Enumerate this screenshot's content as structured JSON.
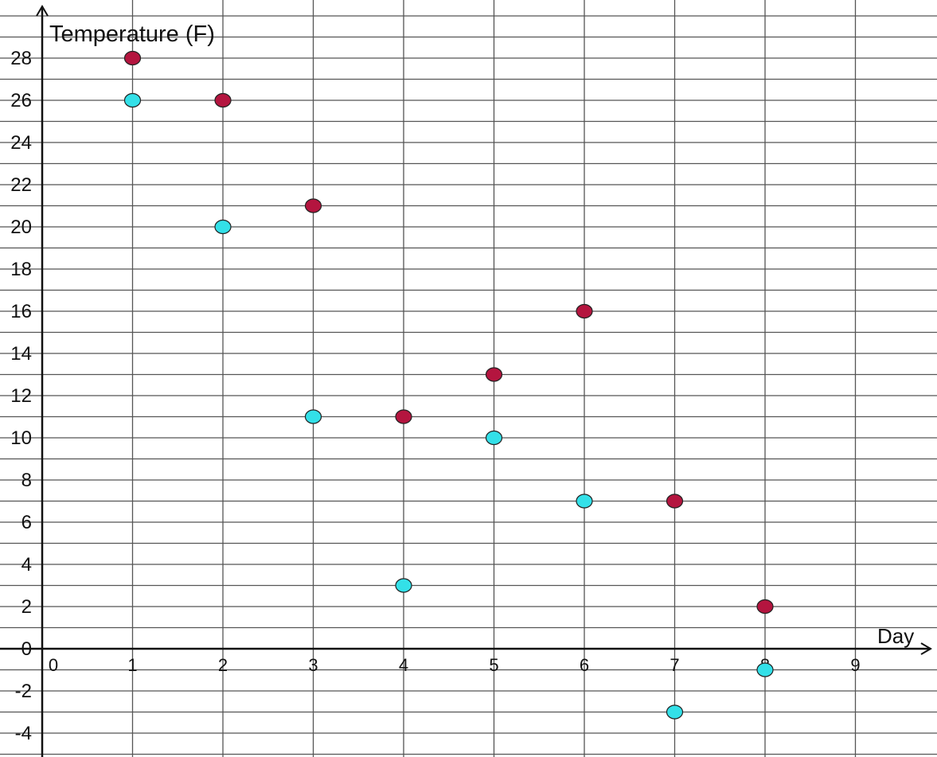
{
  "chart_data": {
    "type": "scatter",
    "title": "",
    "xlabel": "Day",
    "ylabel": "Temperature (F)",
    "xlim": [
      -0.95,
      9.5
    ],
    "ylim": [
      -5,
      30
    ],
    "x_ticks": [
      "0",
      "1",
      "2",
      "3",
      "4",
      "5",
      "6",
      "7",
      "8",
      "9"
    ],
    "y_ticks": [
      "-4",
      "-2",
      "0",
      "2",
      "4",
      "6",
      "8",
      "10",
      "12",
      "14",
      "16",
      "18",
      "20",
      "22",
      "24",
      "26",
      "28"
    ],
    "grid": true,
    "series": [
      {
        "color": "#b4153f",
        "x": [
          1,
          2,
          3,
          4,
          5,
          6,
          7,
          8
        ],
        "y": [
          28,
          26,
          21,
          11,
          13,
          16,
          7,
          2
        ]
      },
      {
        "color": "#33e0e8",
        "x": [
          1,
          2,
          3,
          4,
          5,
          6,
          7,
          8
        ],
        "y": [
          26,
          20,
          11,
          3,
          10,
          7,
          -3,
          -1
        ]
      }
    ]
  }
}
